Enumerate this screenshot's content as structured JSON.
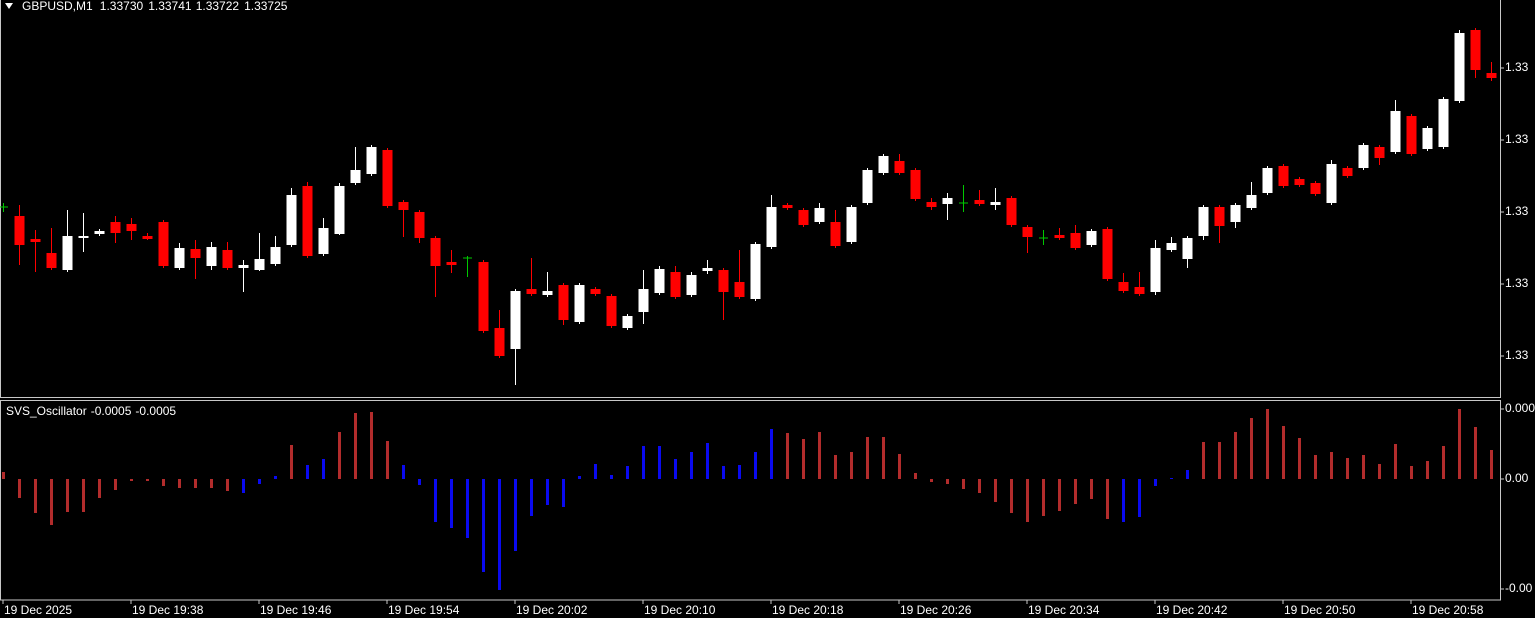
{
  "chart_data": [
    {
      "type": "candlestick",
      "title": "GBPUSD,M1",
      "title_values": [
        "1.33730",
        "1.33741",
        "1.33722",
        "1.33725"
      ],
      "up_color": "#ffffff",
      "down_color": "#ff0000",
      "doji_color": "#00c800",
      "ylim": [
        1.33406,
        1.33803
      ],
      "yticks": [
        {
          "value": 1.33735,
          "label": "1.33"
        },
        {
          "value": 1.33663,
          "label": "1.33"
        },
        {
          "value": 1.33591,
          "label": "1.33"
        },
        {
          "value": 1.33519,
          "label": "1.33"
        },
        {
          "value": 1.33447,
          "label": "1.33"
        }
      ],
      "open": [
        1.33596,
        1.33587,
        1.33564,
        1.3355,
        1.33533,
        1.33565,
        1.33569,
        1.33581,
        1.33579,
        1.33567,
        1.33581,
        1.33535,
        1.33554,
        1.33537,
        1.33553,
        1.33535,
        1.33533,
        1.33539,
        1.33558,
        1.33617,
        1.33549,
        1.33569,
        1.3362,
        1.33629,
        1.33653,
        1.33601,
        1.33591,
        1.33565,
        1.33541,
        1.33545,
        1.33541,
        1.33475,
        1.33454,
        1.33514,
        1.33508,
        1.33518,
        1.33481,
        1.33514,
        1.33507,
        1.33475,
        1.33491,
        1.3351,
        1.33531,
        1.33508,
        1.33532,
        1.33533,
        1.33521,
        1.33504,
        1.33556,
        1.33598,
        1.33593,
        1.33581,
        1.33581,
        1.33561,
        1.336,
        1.3363,
        1.33642,
        1.33633,
        1.33601,
        1.33599,
        1.336,
        1.33603,
        1.33598,
        1.33605,
        1.33576,
        1.33565,
        1.33568,
        1.3357,
        1.33558,
        1.33574,
        1.33521,
        1.33516,
        1.33511,
        1.33553,
        1.33544,
        1.33567,
        1.33596,
        1.33581,
        1.33595,
        1.3361,
        1.33637,
        1.33624,
        1.3362,
        1.336,
        1.33635,
        1.33635,
        1.33656,
        1.33651,
        1.33687,
        1.33654,
        1.33656,
        1.33702,
        1.33773,
        1.3373
      ],
      "high": [
        1.336,
        1.33598,
        1.33573,
        1.33575,
        1.33593,
        1.3359,
        1.33574,
        1.33587,
        1.33585,
        1.3357,
        1.33583,
        1.3356,
        1.33563,
        1.33561,
        1.33561,
        1.33543,
        1.3357,
        1.33567,
        1.33615,
        1.33621,
        1.33585,
        1.3362,
        1.33656,
        1.33658,
        1.33655,
        1.33603,
        1.33593,
        1.33567,
        1.33553,
        1.33547,
        1.33543,
        1.33493,
        1.33514,
        1.33545,
        1.33531,
        1.3352,
        1.3352,
        1.33516,
        1.33509,
        1.33489,
        1.33533,
        1.33537,
        1.33537,
        1.33531,
        1.33543,
        1.33535,
        1.33553,
        1.33561,
        1.33608,
        1.336,
        1.33595,
        1.336,
        1.33593,
        1.33598,
        1.33635,
        1.33649,
        1.33649,
        1.33635,
        1.33605,
        1.3361,
        1.33618,
        1.33613,
        1.33615,
        1.33607,
        1.33578,
        1.33573,
        1.33575,
        1.33578,
        1.33574,
        1.33576,
        1.3353,
        1.33531,
        1.33563,
        1.33566,
        1.33567,
        1.33598,
        1.33598,
        1.336,
        1.33621,
        1.33637,
        1.33639,
        1.33626,
        1.33622,
        1.33643,
        1.33637,
        1.3366,
        1.33658,
        1.33703,
        1.33689,
        1.33677,
        1.33706,
        1.33773,
        1.33775,
        1.33741
      ],
      "low": [
        1.33591,
        1.33538,
        1.33531,
        1.33533,
        1.33531,
        1.33551,
        1.33567,
        1.3356,
        1.33563,
        1.33563,
        1.33535,
        1.33533,
        1.33524,
        1.33533,
        1.33533,
        1.33511,
        1.33532,
        1.33537,
        1.33556,
        1.33545,
        1.33547,
        1.33568,
        1.33618,
        1.33627,
        1.33595,
        1.33566,
        1.3356,
        1.33506,
        1.3353,
        1.33526,
        1.3347,
        1.33445,
        1.33418,
        1.33507,
        1.33506,
        1.33478,
        1.33479,
        1.33507,
        1.33475,
        1.33473,
        1.33479,
        1.33508,
        1.33504,
        1.33506,
        1.33529,
        1.33483,
        1.33504,
        1.33502,
        1.33554,
        1.33593,
        1.33576,
        1.33579,
        1.33555,
        1.33559,
        1.33598,
        1.33628,
        1.33628,
        1.33602,
        1.33593,
        1.33583,
        1.33591,
        1.33597,
        1.33593,
        1.33576,
        1.3355,
        1.33558,
        1.33563,
        1.33553,
        1.33556,
        1.33522,
        1.3351,
        1.33507,
        1.33508,
        1.33551,
        1.33535,
        1.33563,
        1.3356,
        1.33575,
        1.33593,
        1.33608,
        1.33615,
        1.33616,
        1.33607,
        1.33598,
        1.33625,
        1.33633,
        1.33638,
        1.33649,
        1.33647,
        1.33652,
        1.33654,
        1.337,
        1.33725,
        1.33722
      ],
      "close": [
        1.33596,
        1.33558,
        1.33561,
        1.33535,
        1.33567,
        1.33567,
        1.33572,
        1.3357,
        1.33572,
        1.33564,
        1.33537,
        1.33555,
        1.33545,
        1.33556,
        1.33535,
        1.33538,
        1.33544,
        1.33556,
        1.33608,
        1.33547,
        1.33575,
        1.33617,
        1.33633,
        1.33656,
        1.33597,
        1.33593,
        1.33565,
        1.33537,
        1.33538,
        1.33545,
        1.33472,
        1.33447,
        1.33512,
        1.33509,
        1.33512,
        1.33483,
        1.33518,
        1.33509,
        1.33477,
        1.33487,
        1.33514,
        1.33534,
        1.33506,
        1.33528,
        1.33535,
        1.33511,
        1.33506,
        1.33559,
        1.33596,
        1.33595,
        1.33578,
        1.33595,
        1.33557,
        1.33596,
        1.33633,
        1.33647,
        1.3363,
        1.33604,
        1.33596,
        1.33605,
        1.336,
        1.33599,
        1.33601,
        1.33578,
        1.33566,
        1.33565,
        1.33565,
        1.33555,
        1.33572,
        1.33524,
        1.33512,
        1.33509,
        1.33555,
        1.3356,
        1.33565,
        1.33596,
        1.33577,
        1.33598,
        1.33608,
        1.33635,
        1.33617,
        1.33618,
        1.33609,
        1.33639,
        1.33627,
        1.33658,
        1.33645,
        1.33692,
        1.33649,
        1.33675,
        1.33704,
        1.3377,
        1.33733,
        1.33725
      ]
    },
    {
      "type": "bar",
      "title": "SVS_Oscillator",
      "title_values": [
        "-0.0005",
        "-0.0005"
      ],
      "ylim": [
        -0.000605,
        0.000395
      ],
      "yticks": [
        {
          "value": 0.00035,
          "label": "0.000"
        },
        {
          "value": 0,
          "label": "0.00"
        },
        {
          "value": -0.00055,
          "label": "-0.00"
        }
      ],
      "categories": [
        "19 Dec 2025",
        null,
        null,
        null,
        null,
        null,
        null,
        null,
        "19 Dec 19:38",
        null,
        null,
        null,
        null,
        null,
        null,
        null,
        "19 Dec 19:46",
        null,
        null,
        null,
        null,
        null,
        null,
        null,
        "19 Dec 19:54",
        null,
        null,
        null,
        null,
        null,
        null,
        null,
        "19 Dec 20:02",
        null,
        null,
        null,
        null,
        null,
        null,
        null,
        "19 Dec 20:10",
        null,
        null,
        null,
        null,
        null,
        null,
        null,
        "19 Dec 20:18",
        null,
        null,
        null,
        null,
        null,
        null,
        null,
        "19 Dec 20:26",
        null,
        null,
        null,
        null,
        null,
        null,
        null,
        "19 Dec 20:34",
        null,
        null,
        null,
        null,
        null,
        null,
        null,
        "19 Dec 20:42",
        null,
        null,
        null,
        null,
        null,
        null,
        null,
        "19 Dec 20:50",
        null,
        null,
        null,
        null,
        null,
        null,
        null,
        "19 Dec 20:58",
        null,
        null,
        null,
        null,
        null
      ],
      "series": [
        {
          "color": "#b22c2c",
          "values": [
            3.5e-05,
            -9.5e-05,
            -0.00017,
            -0.00023,
            -0.000165,
            -0.000165,
            -9.5e-05,
            -5.5e-05,
            -1e-05,
            -1e-05,
            -3.5e-05,
            -4.5e-05,
            -4.5e-05,
            -4.5e-05,
            -6e-05,
            null,
            null,
            null,
            0.00017,
            null,
            null,
            0.000235,
            0.00033,
            0.000335,
            0.00019,
            null,
            null,
            null,
            null,
            null,
            null,
            null,
            null,
            null,
            null,
            null,
            null,
            null,
            null,
            null,
            null,
            null,
            null,
            null,
            null,
            null,
            null,
            null,
            null,
            0.00023,
            0.0002,
            0.000235,
            0.00012,
            0.000135,
            0.00021,
            0.00021,
            0.000125,
            3e-05,
            -1.5e-05,
            -2.5e-05,
            -5e-05,
            -7e-05,
            -0.000115,
            -0.00017,
            -0.000215,
            -0.000185,
            -0.00016,
            -0.000125,
            -0.0001,
            -0.0002,
            null,
            null,
            null,
            null,
            null,
            0.000185,
            0.000185,
            0.000235,
            0.000305,
            0.00035,
            0.000265,
            0.000205,
            0.00012,
            0.000135,
            0.000105,
            0.00012,
            7.5e-05,
            0.000175,
            6.5e-05,
            9e-05,
            0.000165,
            0.00035,
            0.00026,
            0.000145
          ]
        },
        {
          "color": "#0a0af0",
          "values": [
            null,
            null,
            null,
            null,
            null,
            null,
            null,
            null,
            null,
            null,
            null,
            null,
            null,
            null,
            null,
            -7e-05,
            -2.5e-05,
            1.5e-05,
            null,
            7e-05,
            0.0001,
            null,
            null,
            null,
            null,
            7e-05,
            -3e-05,
            -0.000215,
            -0.000245,
            -0.000295,
            -0.000465,
            -0.000555,
            -0.00036,
            -0.000185,
            -0.00013,
            -0.00014,
            1.5e-05,
            7.5e-05,
            2e-05,
            6.5e-05,
            0.000165,
            0.000165,
            0.0001,
            0.000135,
            0.00018,
            6.5e-05,
            7e-05,
            0.000135,
            0.00025,
            null,
            null,
            null,
            null,
            null,
            null,
            null,
            null,
            null,
            null,
            null,
            null,
            null,
            null,
            null,
            null,
            null,
            null,
            null,
            null,
            null,
            -0.000215,
            -0.00019,
            -3.5e-05,
            5e-06,
            4.5e-05,
            null,
            null,
            null,
            null,
            null,
            null,
            null,
            null,
            null,
            null,
            null,
            null,
            null,
            null,
            null,
            null,
            null,
            null,
            null
          ]
        }
      ]
    }
  ]
}
